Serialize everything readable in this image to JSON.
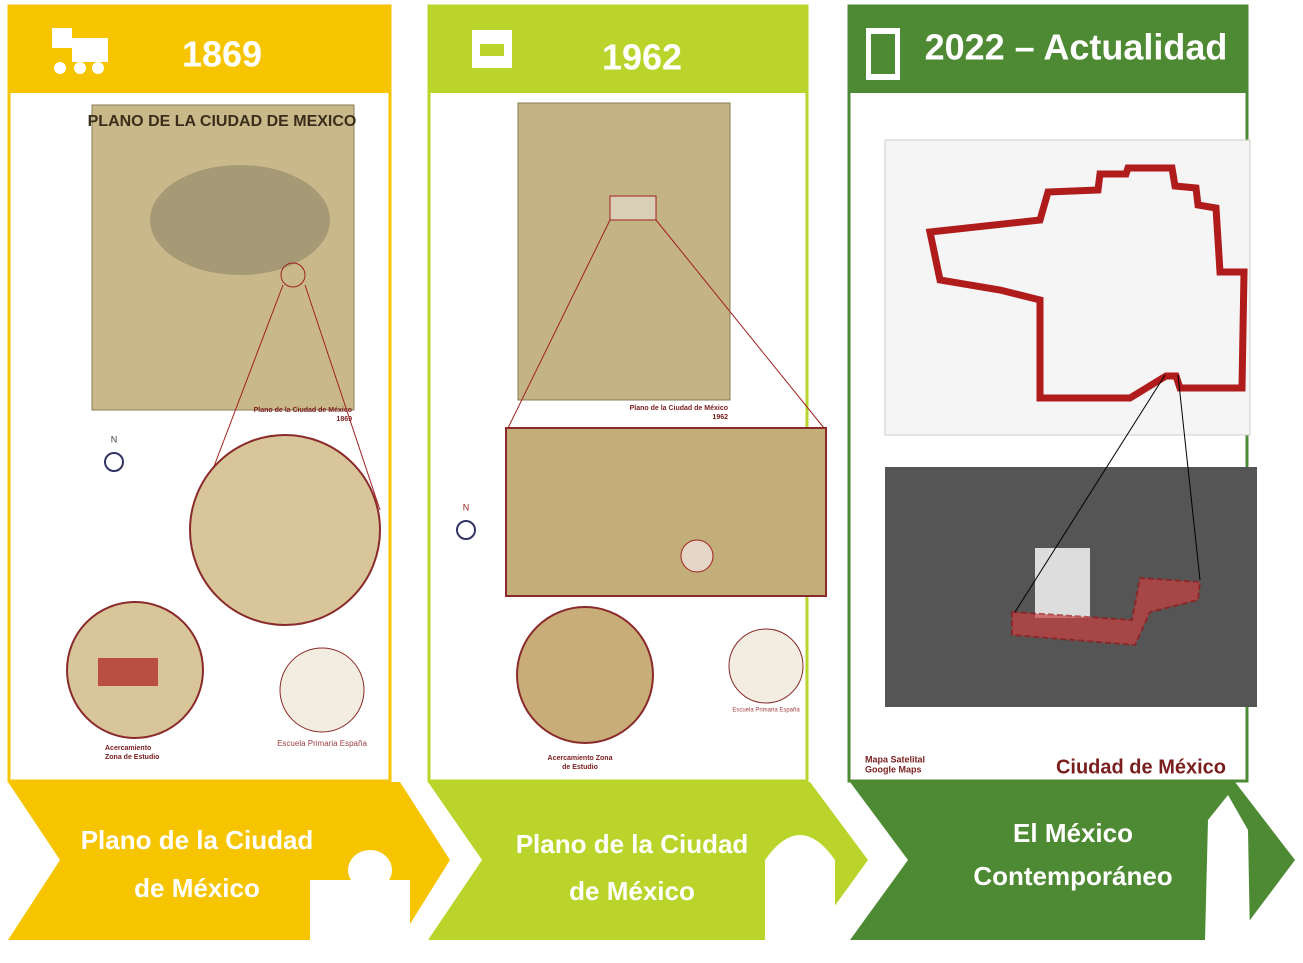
{
  "columns": [
    {
      "year": "1869",
      "map_caption": [
        "Plano de la Ciudad de México",
        "1869"
      ],
      "zoom_caption": [
        "Acercamiento",
        "Zona de Estudio"
      ],
      "school": "Escuela Primaria España",
      "north": "N",
      "footer": [
        "Plano de la Ciudad",
        "de México"
      ]
    },
    {
      "year": "1962",
      "map_caption": [
        "Plano de la Ciudad de México",
        "1962"
      ],
      "zoom_caption": [
        "Acercamiento Zona",
        "de Estudio"
      ],
      "school": "Escuela Primaria España",
      "north": "N",
      "footer": [
        "Plano de la Ciudad",
        "de México"
      ]
    },
    {
      "year": "2022 – Actualidad",
      "map_caption": [
        "Mapa Satelital",
        "Google Maps"
      ],
      "place": "Ciudad de México",
      "footer": [
        "El México",
        "Contemporáneo"
      ]
    }
  ]
}
